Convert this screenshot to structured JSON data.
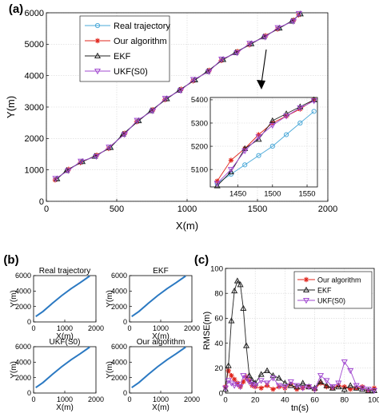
{
  "panels": [
    {
      "id": "a",
      "label": "(a)"
    },
    {
      "id": "b",
      "label": "(b)"
    },
    {
      "id": "c",
      "label": "(c)"
    }
  ],
  "colors": {
    "real": "#4aa8d8",
    "ours": "#e0241b",
    "ekf": "#222222",
    "ukf": "#a24ad0",
    "small": "#2b79c2"
  },
  "chart_data": [
    {
      "panel": "a",
      "type": "line",
      "xlabel": "X(m)",
      "ylabel": "Y(m)",
      "xlim": [
        0,
        2000
      ],
      "ylim": [
        0,
        6000
      ],
      "xticks": [
        0,
        500,
        1000,
        1500,
        2000
      ],
      "yticks": [
        0,
        1000,
        2000,
        3000,
        4000,
        5000,
        6000
      ],
      "grid": true,
      "legend_position": "top-left",
      "legend": [
        {
          "name": "Real trajectory",
          "marker": "circle",
          "color_key": "real"
        },
        {
          "name": "Our algorithm",
          "marker": "star",
          "color_key": "ours"
        },
        {
          "name": "EKF",
          "marker": "triangle",
          "color_key": "ekf"
        },
        {
          "name": "UKF(S0)",
          "marker": "triangle-down",
          "color_key": "ukf"
        }
      ],
      "x": [
        70,
        150,
        250,
        350,
        450,
        550,
        650,
        750,
        850,
        950,
        1050,
        1150,
        1250,
        1350,
        1450,
        1550,
        1650,
        1750,
        1800
      ],
      "y": [
        700,
        1000,
        1250,
        1450,
        1700,
        2150,
        2550,
        2900,
        3250,
        3550,
        3850,
        4150,
        4500,
        4750,
        5000,
        5250,
        5500,
        5750,
        5950
      ],
      "series": [
        {
          "name": "Real trajectory",
          "color_key": "real"
        },
        {
          "name": "Our algorithm",
          "color_key": "ours"
        },
        {
          "name": "EKF",
          "color_key": "ekf"
        },
        {
          "name": "UKF(S0)",
          "color_key": "ukf"
        }
      ]
    },
    {
      "panel": "a-inset",
      "type": "line",
      "xlim": [
        1410,
        1565
      ],
      "ylim": [
        5025,
        5410
      ],
      "xticks": [
        1450,
        1500,
        1550
      ],
      "yticks": [
        5100,
        5200,
        5300,
        5400
      ],
      "grid": true,
      "series": [
        {
          "name": "Real trajectory",
          "color_key": "real",
          "x": [
            1420,
            1440,
            1460,
            1480,
            1500,
            1520,
            1540,
            1560
          ],
          "y": [
            5040,
            5080,
            5120,
            5160,
            5200,
            5250,
            5300,
            5350
          ]
        },
        {
          "name": "Our algorithm",
          "color_key": "ours",
          "x": [
            1420,
            1440,
            1460,
            1480,
            1500,
            1520,
            1540,
            1560
          ],
          "y": [
            5050,
            5140,
            5190,
            5250,
            5300,
            5330,
            5360,
            5400
          ]
        },
        {
          "name": "EKF",
          "color_key": "ekf",
          "x": [
            1420,
            1440,
            1460,
            1480,
            1500,
            1520,
            1540,
            1560
          ],
          "y": [
            5030,
            5090,
            5190,
            5230,
            5310,
            5340,
            5370,
            5400
          ]
        },
        {
          "name": "UKF(S0)",
          "color_key": "ukf",
          "x": [
            1420,
            1440,
            1460,
            1480,
            1500,
            1520,
            1540,
            1560
          ],
          "y": [
            5040,
            5100,
            5180,
            5240,
            5290,
            5330,
            5365,
            5395
          ]
        }
      ]
    },
    {
      "panel": "b",
      "type": "line",
      "subplots": [
        {
          "title": "Real trajectory",
          "xlabel": "X(m)",
          "ylabel": "Y(m)"
        },
        {
          "title": "EKF",
          "xlabel": "X(m)",
          "ylabel": "Y(m)"
        },
        {
          "title": "UKF(S0)",
          "xlabel": "X(m)",
          "ylabel": "Y(m)"
        },
        {
          "title": "Our algorithm",
          "xlabel": "X(m)",
          "ylabel": "Y(m)"
        }
      ],
      "xlim": [
        0,
        2000
      ],
      "ylim": [
        0,
        6000
      ],
      "xticks": [
        0,
        1000,
        2000
      ],
      "yticks": [
        0,
        2000,
        4000,
        6000
      ],
      "x": [
        70,
        300,
        600,
        900,
        1200,
        1500,
        1800
      ],
      "y": [
        700,
        1350,
        2400,
        3400,
        4300,
        5100,
        5950
      ]
    },
    {
      "panel": "c",
      "type": "line",
      "xlabel": "tn(s)",
      "ylabel": "RMSE(m)",
      "xlim": [
        0,
        100
      ],
      "ylim": [
        0,
        100
      ],
      "xticks": [
        0,
        20,
        40,
        60,
        80,
        100
      ],
      "yticks": [
        0,
        20,
        40,
        60,
        80,
        100
      ],
      "grid": true,
      "legend_position": "top-right",
      "series": [
        {
          "name": "Our algorithm",
          "color_key": "ours",
          "x": [
            0,
            2,
            4,
            6,
            8,
            10,
            12,
            14,
            16,
            18,
            20,
            24,
            28,
            32,
            36,
            40,
            44,
            48,
            52,
            56,
            60,
            64,
            68,
            72,
            76,
            80,
            84,
            88,
            92,
            96,
            100
          ],
          "y": [
            5,
            18,
            14,
            11,
            8,
            5,
            9,
            13,
            10,
            6,
            5,
            4,
            6,
            3,
            5,
            4,
            7,
            3,
            4,
            5,
            3,
            8,
            5,
            4,
            6,
            5,
            3,
            4,
            5,
            2,
            4
          ]
        },
        {
          "name": "EKF",
          "color_key": "ekf",
          "x": [
            0,
            2,
            4,
            6,
            8,
            10,
            12,
            14,
            16,
            18,
            20,
            24,
            28,
            32,
            36,
            40,
            44,
            48,
            52,
            56,
            60,
            64,
            68,
            72,
            76,
            80,
            84,
            88,
            92,
            96,
            100
          ],
          "y": [
            3,
            22,
            58,
            82,
            90,
            87,
            68,
            38,
            14,
            10,
            8,
            15,
            18,
            14,
            12,
            8,
            6,
            5,
            8,
            5,
            4,
            9,
            6,
            4,
            5,
            3,
            6,
            4,
            3,
            2,
            2
          ]
        },
        {
          "name": "UKF(S0)",
          "color_key": "ukf",
          "x": [
            0,
            2,
            4,
            6,
            8,
            10,
            12,
            14,
            16,
            18,
            20,
            24,
            28,
            32,
            36,
            40,
            44,
            48,
            52,
            56,
            60,
            64,
            68,
            72,
            76,
            80,
            84,
            88,
            92,
            96,
            100
          ],
          "y": [
            4,
            10,
            8,
            6,
            7,
            5,
            14,
            12,
            9,
            7,
            6,
            10,
            8,
            12,
            6,
            5,
            9,
            6,
            4,
            5,
            3,
            14,
            10,
            5,
            8,
            25,
            18,
            6,
            4,
            3,
            2
          ]
        }
      ]
    }
  ]
}
